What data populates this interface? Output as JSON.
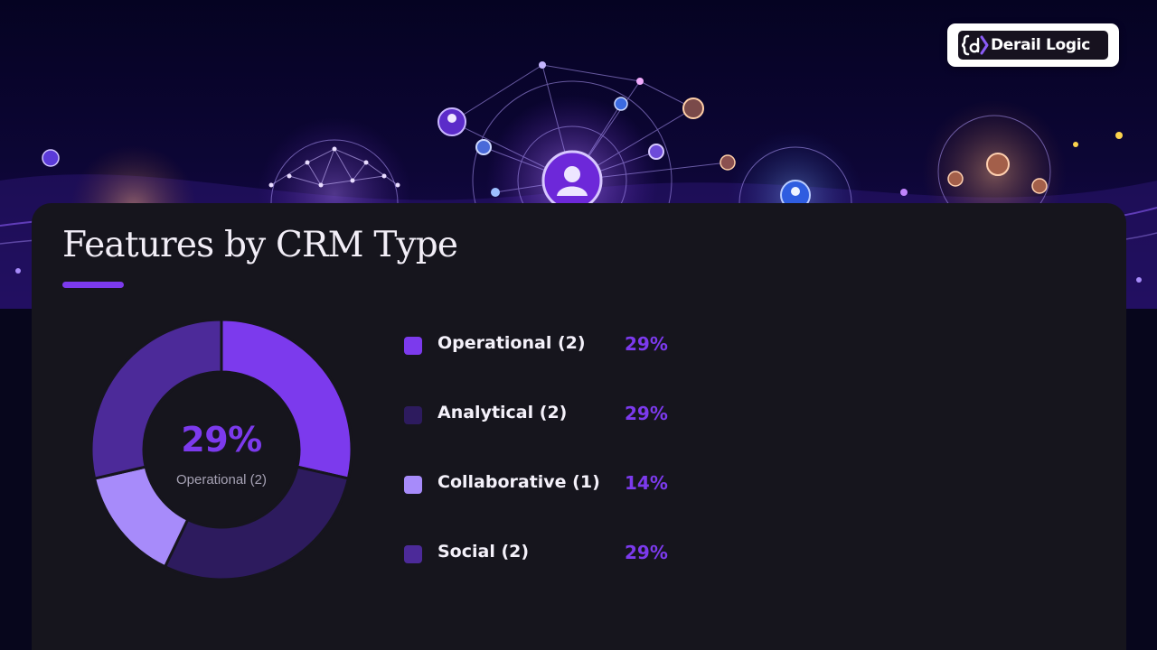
{
  "brand": {
    "name": "Derail Logic",
    "icon": "brace-d-logo-icon"
  },
  "colors": {
    "accent": "#7c3aed",
    "panel": "#16151d",
    "operational": "#7c3aed",
    "analytical": "#2d1b5e",
    "collaborative": "#a78bfa",
    "social": "#4c2a99"
  },
  "chart_data": {
    "type": "pie",
    "variant": "donut",
    "title": "Features by CRM Type",
    "center": {
      "value": "29%",
      "label": "Operational (2)"
    },
    "series": [
      {
        "name": "Operational (2)",
        "count": 2,
        "percent": "29%",
        "value": 28.57,
        "color": "#7c3aed"
      },
      {
        "name": "Analytical (2)",
        "count": 2,
        "percent": "29%",
        "value": 28.57,
        "color": "#2d1b5e"
      },
      {
        "name": "Collaborative (1)",
        "count": 1,
        "percent": "14%",
        "value": 14.29,
        "color": "#a78bfa"
      },
      {
        "name": "Social (2)",
        "count": 2,
        "percent": "29%",
        "value": 28.57,
        "color": "#4c2a99"
      }
    ],
    "legend": "right"
  }
}
